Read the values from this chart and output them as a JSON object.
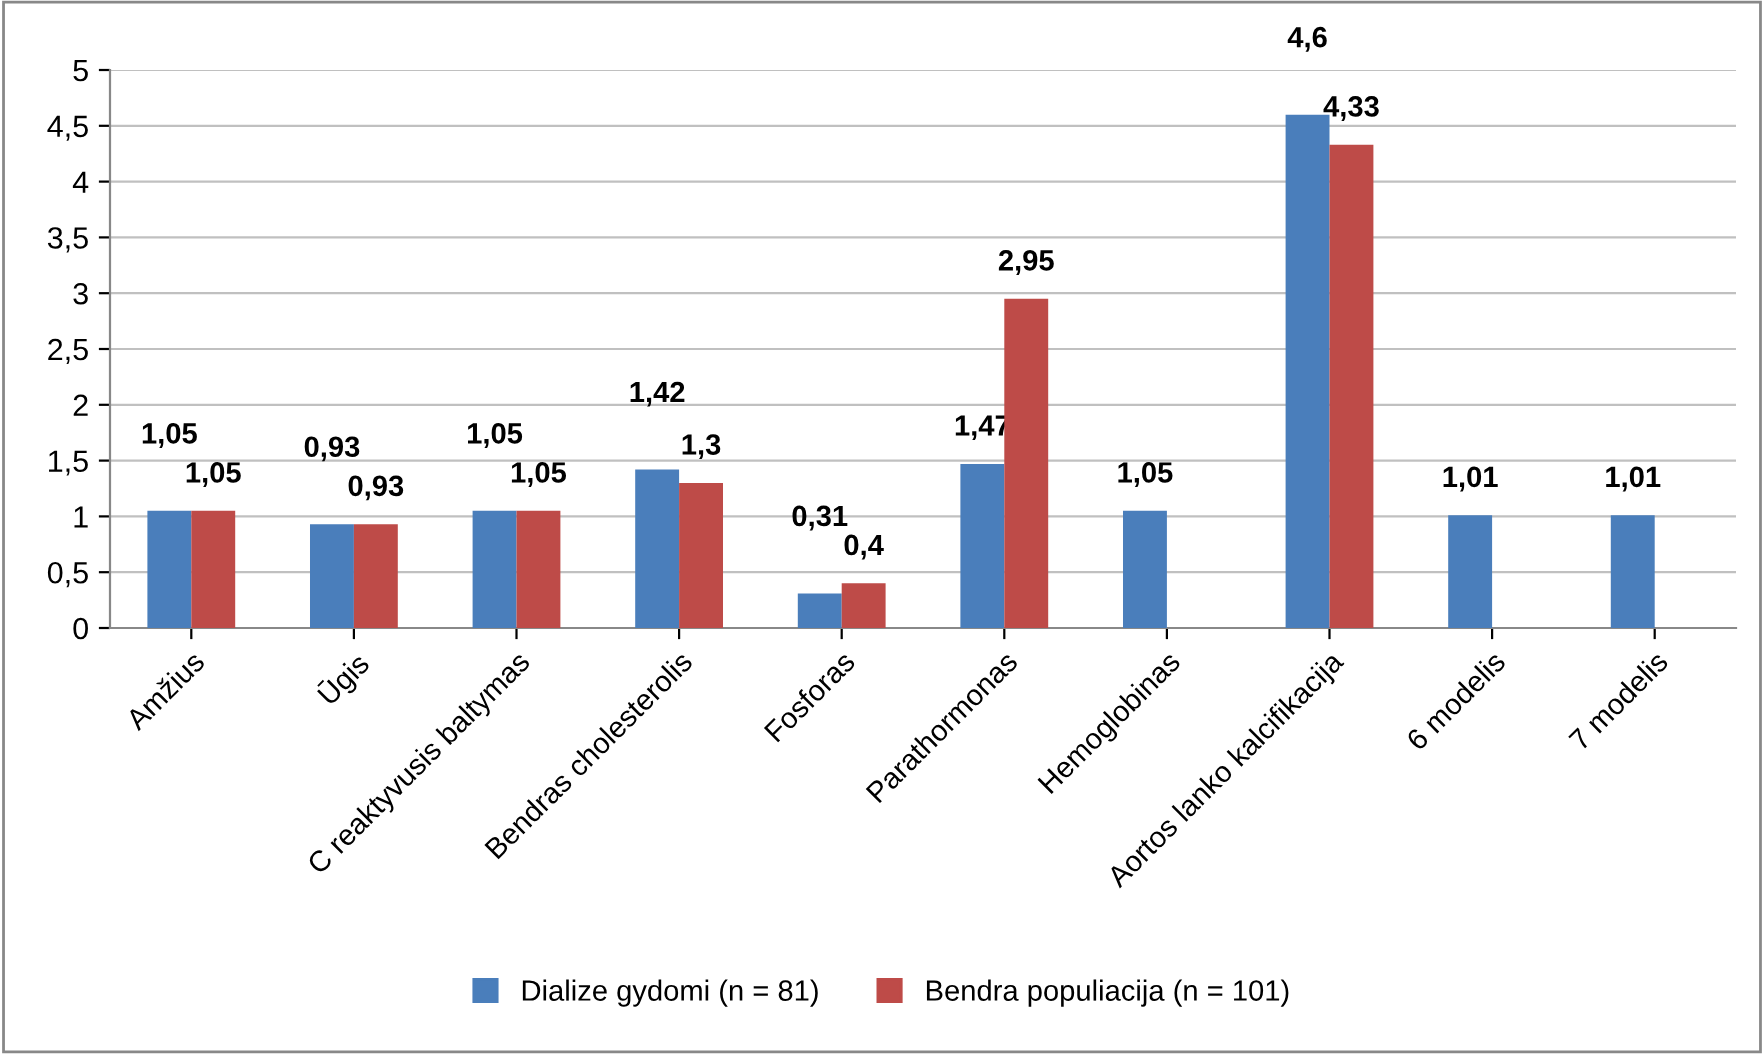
{
  "chart_data": {
    "type": "bar",
    "categories": [
      "Amžius",
      "Ūgis",
      "C reaktyvusis baltymas",
      "Bendras cholesterolis",
      "Fosforas",
      "Parathormonas",
      "Hemoglobinas",
      "Aortos lanko kalcifikacija",
      "6 modelis",
      "7 modelis"
    ],
    "series": [
      {
        "name": "Dialize gydomi (n = 81)",
        "color": "#4a7ebb",
        "values": [
          1.05,
          0.93,
          1.05,
          1.42,
          0.31,
          1.47,
          1.05,
          4.6,
          1.01,
          1.01
        ],
        "value_labels": [
          "1,05",
          "0,93",
          "1,05",
          "1,42",
          "0,31",
          "1,47",
          "1,05",
          "4,6",
          "1,01",
          "1,01"
        ]
      },
      {
        "name": "Bendra populiacija (n = 101)",
        "color": "#be4b48",
        "values": [
          1.05,
          0.93,
          1.05,
          1.3,
          0.4,
          2.95,
          null,
          4.33,
          null,
          null
        ],
        "value_labels": [
          "1,05",
          "0,93",
          "1,05",
          "1,3",
          "0,4",
          "2,95",
          null,
          "4,33",
          null,
          null
        ]
      }
    ],
    "ylim": [
      0,
      5
    ],
    "yticks": [
      0,
      {
        "value": 0.5,
        "label": "0,5"
      },
      1,
      {
        "value": 1.5,
        "label": "1,5"
      },
      2,
      {
        "value": 2.5,
        "label": "2,5"
      },
      3,
      {
        "value": 3.5,
        "label": "3,5"
      },
      4,
      {
        "value": 4.5,
        "label": "4,5"
      },
      5
    ],
    "grid": "y",
    "legend": "bottom"
  }
}
